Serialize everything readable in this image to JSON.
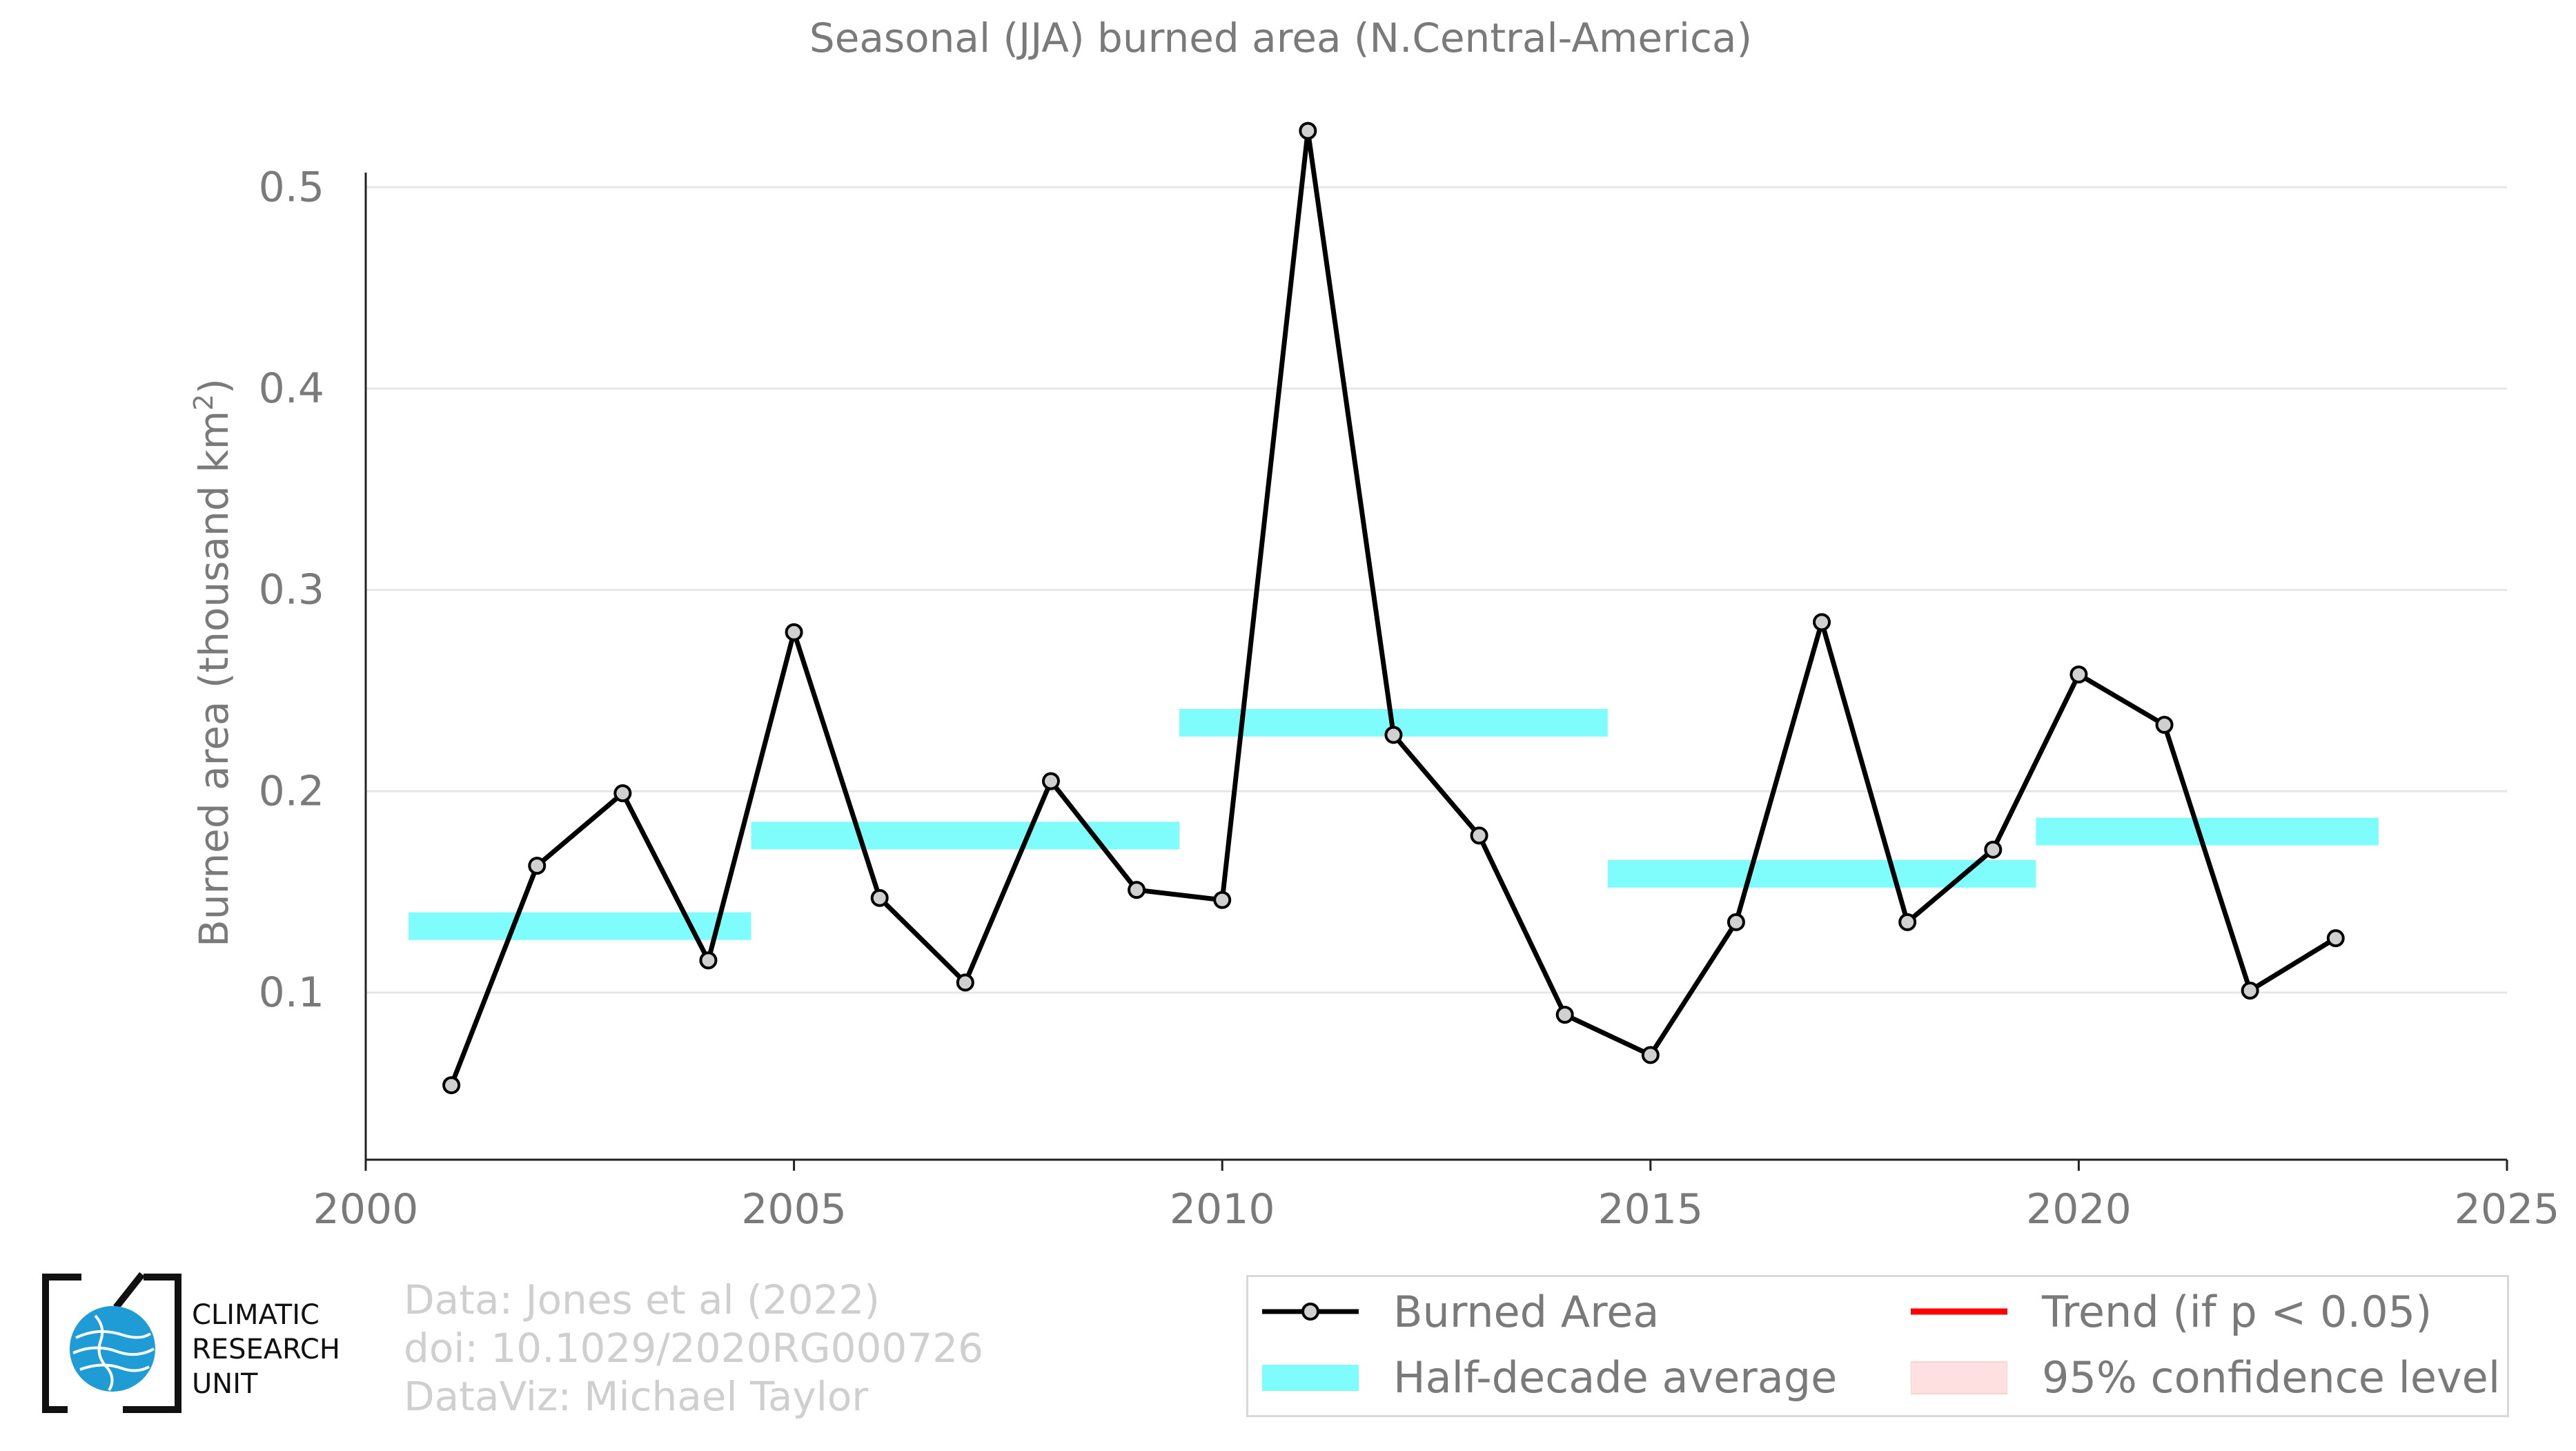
{
  "chart_data": {
    "type": "line",
    "title": "Seasonal (JJA) burned area (N.Central-America)",
    "ylabel": "Burned area (thousand km",
    "ylabel_sup": "2",
    "ylabel_close": ")",
    "xlabel": "",
    "xlim": [
      2000,
      2025
    ],
    "ylim": [
      0.017,
      0.545
    ],
    "xticks": [
      2000,
      2005,
      2010,
      2015,
      2020,
      2025
    ],
    "yticks": [
      0.1,
      0.2,
      0.3,
      0.4,
      0.5
    ],
    "ytick_labels": [
      "0.1",
      "0.2",
      "0.3",
      "0.4",
      "0.5"
    ],
    "grid": "horizontal",
    "legend_position": "bottom-right",
    "series": [
      {
        "name": "Burned Area",
        "color": "#000000",
        "marker_color": "#d0d0d0",
        "x": [
          2001,
          2002,
          2003,
          2004,
          2005,
          2006,
          2007,
          2008,
          2009,
          2010,
          2011,
          2012,
          2013,
          2014,
          2015,
          2016,
          2017,
          2018,
          2019,
          2020,
          2021,
          2022,
          2023
        ],
        "y": [
          0.054,
          0.163,
          0.199,
          0.116,
          0.279,
          0.147,
          0.105,
          0.205,
          0.151,
          0.146,
          0.528,
          0.228,
          0.178,
          0.089,
          0.069,
          0.135,
          0.284,
          0.135,
          0.171,
          0.258,
          0.233,
          0.101,
          0.127
        ]
      }
    ],
    "half_decade_average": {
      "name": "Half-decade average",
      "color": "#7ffcfc",
      "segments": [
        {
          "x_start": 2000.5,
          "x_end": 2004.5,
          "value": 0.133
        },
        {
          "x_start": 2004.5,
          "x_end": 2009.5,
          "value": 0.178
        },
        {
          "x_start": 2009.5,
          "x_end": 2014.5,
          "value": 0.234
        },
        {
          "x_start": 2014.5,
          "x_end": 2019.5,
          "value": 0.159
        },
        {
          "x_start": 2019.5,
          "x_end": 2023.5,
          "value": 0.18
        }
      ]
    },
    "legend": {
      "burned_area": "Burned Area",
      "half_decade": "Half-decade average",
      "trend": "Trend (if p < 0.05)",
      "confidence": "95% confidence level",
      "trend_color": "#ff0000",
      "confidence_color": "#ffe0e0"
    }
  },
  "credits": {
    "line1": "Data: Jones et al (2022)",
    "line2": "doi: 10.1029/2020RG000726",
    "line3": "DataViz: Michael Taylor"
  },
  "logo": {
    "icon": "globe-icon",
    "line1": "CLIMATIC",
    "line2": "RESEARCH",
    "line3": "UNIT"
  }
}
